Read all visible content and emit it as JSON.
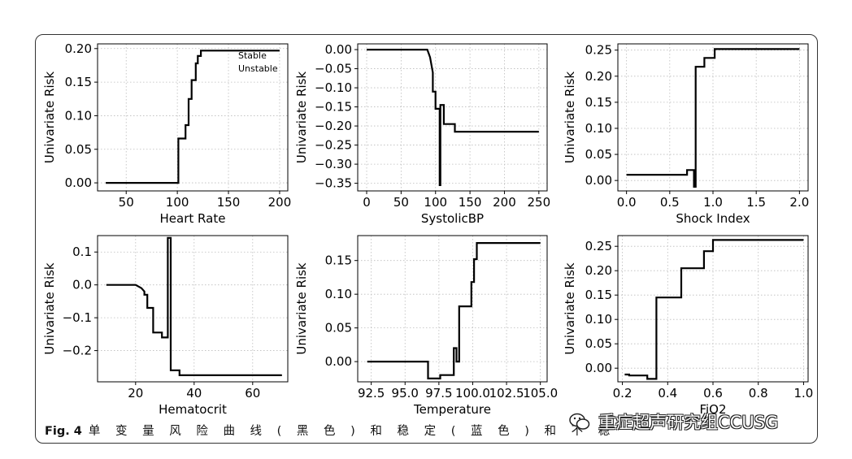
{
  "figure": {
    "caption_label": "Fig. 4",
    "caption_text": "单 变 量 风 险 曲 线 ( 黑 色 ) 和 稳 定 ( 蓝 色 ) 和 不 稳 定 ( 橙 色 ) 患 者 的 ",
    "watermark_text": "重症超声研究组CCUSG",
    "line_color": "#000000",
    "grid_color": "#bbbbbb"
  },
  "chart_data": [
    {
      "type": "line",
      "title": "",
      "xlabel": "Heart Rate",
      "ylabel": "Univariate Risk",
      "xlim": [
        22,
        208
      ],
      "ylim": [
        -0.012,
        0.207
      ],
      "xticks": [
        50,
        100,
        150,
        200
      ],
      "yticks": [
        0.0,
        0.05,
        0.1,
        0.15,
        0.2
      ],
      "ytick_labels": [
        "0.00",
        "0.05",
        "0.10",
        "0.15",
        "0.20"
      ],
      "grid": true,
      "legend": {
        "position": "top-right",
        "entries": [
          "Stable",
          "Unstable"
        ]
      },
      "series": [
        {
          "x": [
            30,
            58,
            58,
            101,
            101,
            108,
            108,
            111,
            111,
            114,
            114,
            118,
            118,
            120,
            120,
            123,
            123,
            200
          ],
          "y": [
            0,
            0,
            0,
            0,
            0.066,
            0.066,
            0.086,
            0.086,
            0.125,
            0.125,
            0.153,
            0.153,
            0.178,
            0.178,
            0.189,
            0.189,
            0.197,
            0.197
          ]
        }
      ]
    },
    {
      "type": "line",
      "title": "",
      "xlabel": "SystolicBP",
      "ylabel": "Univariate Risk",
      "xlim": [
        -13,
        262
      ],
      "ylim": [
        -0.37,
        0.015
      ],
      "xticks": [
        0,
        50,
        100,
        150,
        200,
        250
      ],
      "yticks": [
        0.0,
        -0.05,
        -0.1,
        -0.15,
        -0.2,
        -0.25,
        -0.3,
        -0.35
      ],
      "ytick_labels": [
        "0.00",
        "−0.05",
        "−0.10",
        "−0.15",
        "−0.20",
        "−0.25",
        "−0.30",
        "−0.35"
      ],
      "grid": true,
      "series": [
        {
          "x": [
            0,
            88,
            90,
            92,
            94,
            96,
            96,
            100,
            100,
            106,
            106,
            107,
            107,
            112,
            112,
            120,
            120,
            128,
            128,
            250
          ],
          "y": [
            0,
            0,
            -0.01,
            -0.02,
            -0.04,
            -0.06,
            -0.11,
            -0.11,
            -0.155,
            -0.155,
            -0.355,
            -0.355,
            -0.145,
            -0.145,
            -0.195,
            -0.195,
            -0.195,
            -0.195,
            -0.215,
            -0.215
          ]
        }
      ]
    },
    {
      "type": "line",
      "title": "",
      "xlabel": "Shock Index",
      "ylabel": "Univariate Risk",
      "xlim": [
        -0.1,
        2.1
      ],
      "ylim": [
        -0.02,
        0.262
      ],
      "xticks": [
        0.0,
        0.5,
        1.0,
        1.5,
        2.0
      ],
      "xtick_labels": [
        "0.0",
        "0.5",
        "1.0",
        "1.5",
        "2.0"
      ],
      "yticks": [
        0.0,
        0.05,
        0.1,
        0.15,
        0.2,
        0.25
      ],
      "ytick_labels": [
        "0.00",
        "0.05",
        "0.10",
        "0.15",
        "0.20",
        "0.25"
      ],
      "grid": true,
      "series": [
        {
          "x": [
            0,
            0.7,
            0.7,
            0.78,
            0.78,
            0.8,
            0.8,
            0.9,
            0.9,
            1.02,
            1.02,
            2.0
          ],
          "y": [
            0.011,
            0.011,
            0.02,
            0.02,
            -0.012,
            -0.012,
            0.218,
            0.218,
            0.235,
            0.235,
            0.252,
            0.252
          ]
        }
      ]
    },
    {
      "type": "line",
      "title": "",
      "xlabel": "Hematocrit",
      "ylabel": "Univariate Risk",
      "xlim": [
        7,
        72
      ],
      "ylim": [
        -0.295,
        0.15
      ],
      "xticks": [
        20,
        40,
        60
      ],
      "yticks": [
        0.1,
        0.0,
        -0.1,
        -0.2
      ],
      "ytick_labels": [
        "0.1",
        "0.0",
        "−0.1",
        "−0.2"
      ],
      "grid": true,
      "series": [
        {
          "x": [
            10,
            20,
            21,
            22,
            23,
            23,
            24,
            24,
            26,
            26,
            29,
            29,
            31,
            31,
            32,
            32,
            35,
            35,
            70
          ],
          "y": [
            0,
            0,
            -0.005,
            -0.01,
            -0.02,
            -0.03,
            -0.03,
            -0.07,
            -0.07,
            -0.145,
            -0.145,
            -0.16,
            -0.16,
            0.143,
            0.143,
            -0.26,
            -0.26,
            -0.275,
            -0.275
          ]
        }
      ]
    },
    {
      "type": "line",
      "title": "",
      "xlabel": "Temperature",
      "ylabel": "Univariate Risk",
      "xlim": [
        91.5,
        105.5
      ],
      "ylim": [
        -0.03,
        0.187
      ],
      "xticks": [
        92.5,
        95.0,
        97.5,
        100.0,
        102.5,
        105.0
      ],
      "xtick_labels": [
        "92.5",
        "95.0",
        "97.5",
        "100.0",
        "102.5",
        "105.0"
      ],
      "yticks": [
        0.0,
        0.05,
        0.1,
        0.15
      ],
      "ytick_labels": [
        "0.00",
        "0.05",
        "0.10",
        "0.15"
      ],
      "grid": true,
      "series": [
        {
          "x": [
            92.2,
            96.7,
            96.7,
            97.6,
            97.6,
            98.6,
            98.6,
            98.8,
            98.8,
            99.0,
            99.0,
            99.9,
            99.9,
            100.1,
            100.1,
            100.3,
            100.3,
            105.0
          ],
          "y": [
            0,
            0,
            -0.025,
            -0.025,
            -0.02,
            -0.02,
            0.02,
            0.02,
            0.0,
            0.0,
            0.082,
            0.082,
            0.118,
            0.118,
            0.152,
            0.152,
            0.176,
            0.176
          ]
        }
      ]
    },
    {
      "type": "line",
      "title": "",
      "xlabel": "FiO2",
      "ylabel": "Univariate Risk",
      "xlim": [
        0.18,
        1.02
      ],
      "ylim": [
        -0.028,
        0.272
      ],
      "xticks": [
        0.2,
        0.4,
        0.6,
        0.8,
        1.0
      ],
      "xtick_labels": [
        "0.2",
        "0.4",
        "0.6",
        "0.8",
        "1.0"
      ],
      "yticks": [
        0.0,
        0.05,
        0.1,
        0.15,
        0.2,
        0.25
      ],
      "ytick_labels": [
        "0.00",
        "0.05",
        "0.10",
        "0.15",
        "0.20",
        "0.25"
      ],
      "grid": true,
      "series": [
        {
          "x": [
            0.21,
            0.23,
            0.23,
            0.31,
            0.31,
            0.35,
            0.35,
            0.46,
            0.46,
            0.56,
            0.56,
            0.6,
            0.6,
            1.0
          ],
          "y": [
            -0.013,
            -0.013,
            -0.015,
            -0.015,
            -0.022,
            -0.022,
            0.145,
            0.145,
            0.205,
            0.205,
            0.24,
            0.24,
            0.263,
            0.263
          ]
        }
      ]
    }
  ]
}
